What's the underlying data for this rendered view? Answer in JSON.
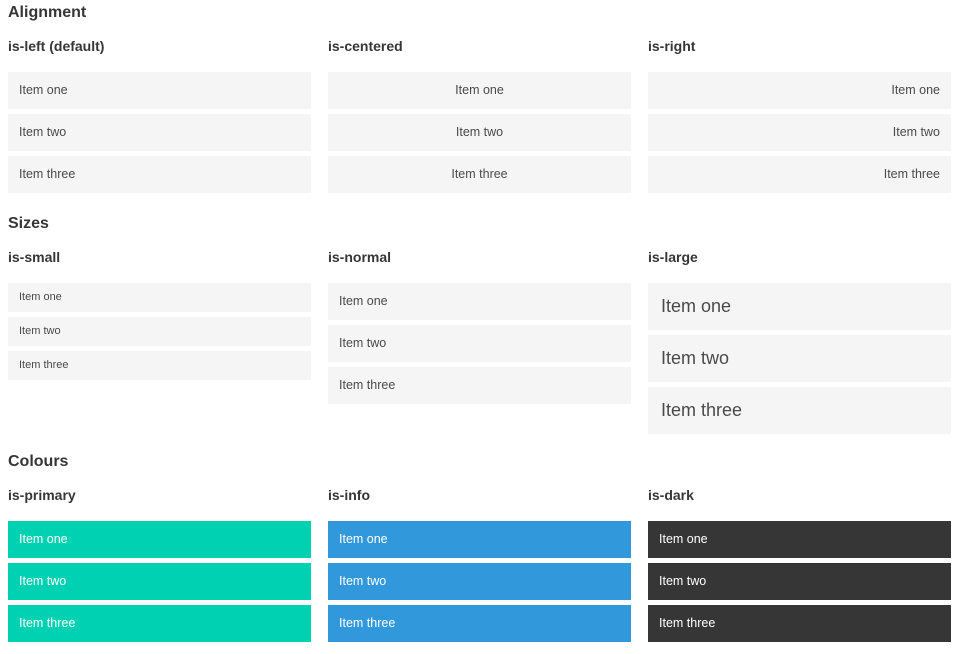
{
  "colors": {
    "page_background": "#ffffff",
    "heading_text": "#363636",
    "item_background": "#f5f5f5",
    "item_text": "#4a4a4a",
    "primary": "#00d1b2",
    "info": "#3298dc",
    "dark": "#363636",
    "colored_item_text": "#ffffff"
  },
  "sections": [
    {
      "title": "Alignment",
      "columns": [
        {
          "label": "is-left (default)",
          "variant": "align-left",
          "items": [
            "Item one",
            "Item two",
            "Item three"
          ]
        },
        {
          "label": "is-centered",
          "variant": "align-center",
          "items": [
            "Item one",
            "Item two",
            "Item three"
          ]
        },
        {
          "label": "is-right",
          "variant": "align-right",
          "items": [
            "Item one",
            "Item two",
            "Item three"
          ]
        }
      ]
    },
    {
      "title": "Sizes",
      "columns": [
        {
          "label": "is-small",
          "variant": "size-small",
          "items": [
            "Item one",
            "Item two",
            "Item three"
          ]
        },
        {
          "label": "is-normal",
          "variant": "size-normal",
          "items": [
            "Item one",
            "Item two",
            "Item three"
          ]
        },
        {
          "label": "is-large",
          "variant": "size-large",
          "items": [
            "Item one",
            "Item two",
            "Item three"
          ]
        }
      ]
    },
    {
      "title": "Colours",
      "columns": [
        {
          "label": "is-primary",
          "variant": "color-primary",
          "color": "#00d1b2",
          "items": [
            "Item one",
            "Item two",
            "Item three"
          ]
        },
        {
          "label": "is-info",
          "variant": "color-info",
          "color": "#3298dc",
          "items": [
            "Item one",
            "Item two",
            "Item three"
          ]
        },
        {
          "label": "is-dark",
          "variant": "color-dark",
          "color": "#363636",
          "items": [
            "Item one",
            "Item two",
            "Item three"
          ]
        }
      ]
    }
  ]
}
